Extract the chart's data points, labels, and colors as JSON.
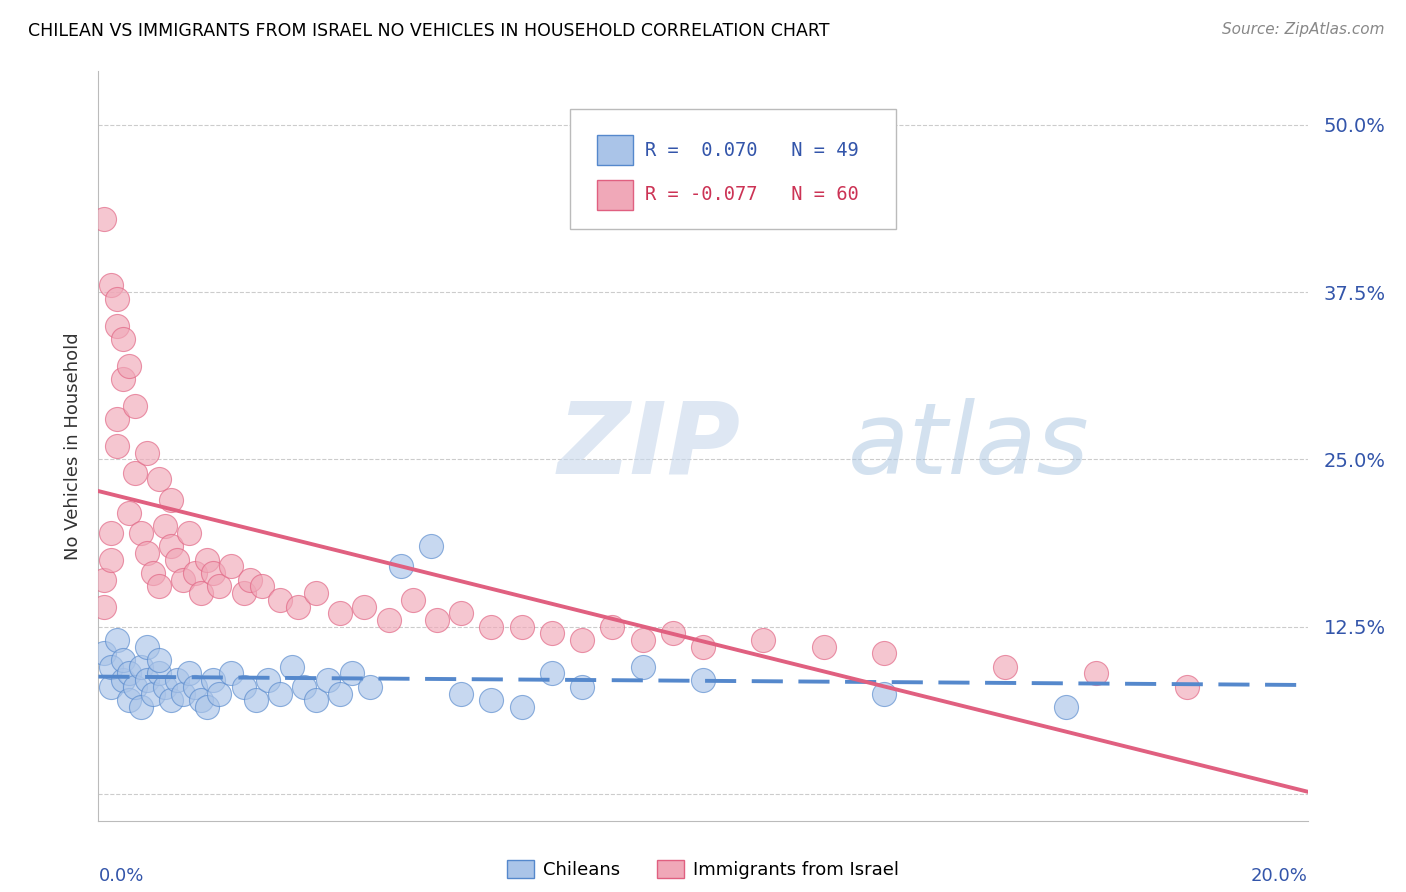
{
  "title": "CHILEAN VS IMMIGRANTS FROM ISRAEL NO VEHICLES IN HOUSEHOLD CORRELATION CHART",
  "source": "Source: ZipAtlas.com",
  "ylabel": "No Vehicles in Household",
  "xlim": [
    0.0,
    0.2
  ],
  "ylim": [
    -0.02,
    0.54
  ],
  "yticks": [
    0.0,
    0.125,
    0.25,
    0.375,
    0.5
  ],
  "ytick_labels": [
    "",
    "12.5%",
    "25.0%",
    "37.5%",
    "50.0%"
  ],
  "legend_r1": "R =  0.070",
  "legend_n1": "N = 49",
  "legend_r2": "R = -0.077",
  "legend_n2": "N = 60",
  "color_blue": "#aac4e8",
  "color_pink": "#f0a8b8",
  "color_blue_line": "#5588cc",
  "color_pink_line": "#e06080",
  "color_blue_text": "#3355aa",
  "color_pink_text": "#cc3355",
  "watermark_zip": "ZIP",
  "watermark_atlas": "atlas",
  "chilean_x": [
    0.001,
    0.002,
    0.002,
    0.003,
    0.004,
    0.004,
    0.005,
    0.005,
    0.006,
    0.007,
    0.007,
    0.008,
    0.008,
    0.009,
    0.01,
    0.01,
    0.011,
    0.012,
    0.013,
    0.014,
    0.015,
    0.016,
    0.017,
    0.018,
    0.019,
    0.02,
    0.022,
    0.024,
    0.026,
    0.028,
    0.03,
    0.032,
    0.034,
    0.036,
    0.038,
    0.04,
    0.042,
    0.045,
    0.05,
    0.055,
    0.06,
    0.065,
    0.07,
    0.075,
    0.08,
    0.09,
    0.1,
    0.13,
    0.16
  ],
  "chilean_y": [
    0.105,
    0.08,
    0.095,
    0.115,
    0.085,
    0.1,
    0.07,
    0.09,
    0.08,
    0.095,
    0.065,
    0.085,
    0.11,
    0.075,
    0.09,
    0.1,
    0.08,
    0.07,
    0.085,
    0.075,
    0.09,
    0.08,
    0.07,
    0.065,
    0.085,
    0.075,
    0.09,
    0.08,
    0.07,
    0.085,
    0.075,
    0.095,
    0.08,
    0.07,
    0.085,
    0.075,
    0.09,
    0.08,
    0.17,
    0.185,
    0.075,
    0.07,
    0.065,
    0.09,
    0.08,
    0.095,
    0.085,
    0.075,
    0.065
  ],
  "israel_x": [
    0.001,
    0.001,
    0.002,
    0.002,
    0.003,
    0.003,
    0.004,
    0.005,
    0.006,
    0.007,
    0.008,
    0.009,
    0.01,
    0.011,
    0.012,
    0.013,
    0.014,
    0.015,
    0.016,
    0.017,
    0.018,
    0.019,
    0.02,
    0.022,
    0.024,
    0.025,
    0.027,
    0.03,
    0.033,
    0.036,
    0.04,
    0.044,
    0.048,
    0.052,
    0.056,
    0.06,
    0.065,
    0.07,
    0.075,
    0.08,
    0.085,
    0.09,
    0.095,
    0.1,
    0.11,
    0.12,
    0.13,
    0.15,
    0.165,
    0.18,
    0.001,
    0.002,
    0.003,
    0.003,
    0.004,
    0.005,
    0.006,
    0.008,
    0.01,
    0.012
  ],
  "israel_y": [
    0.16,
    0.14,
    0.195,
    0.175,
    0.28,
    0.26,
    0.31,
    0.21,
    0.24,
    0.195,
    0.18,
    0.165,
    0.155,
    0.2,
    0.185,
    0.175,
    0.16,
    0.195,
    0.165,
    0.15,
    0.175,
    0.165,
    0.155,
    0.17,
    0.15,
    0.16,
    0.155,
    0.145,
    0.14,
    0.15,
    0.135,
    0.14,
    0.13,
    0.145,
    0.13,
    0.135,
    0.125,
    0.125,
    0.12,
    0.115,
    0.125,
    0.115,
    0.12,
    0.11,
    0.115,
    0.11,
    0.105,
    0.095,
    0.09,
    0.08,
    0.43,
    0.38,
    0.37,
    0.35,
    0.34,
    0.32,
    0.29,
    0.255,
    0.235,
    0.22
  ]
}
